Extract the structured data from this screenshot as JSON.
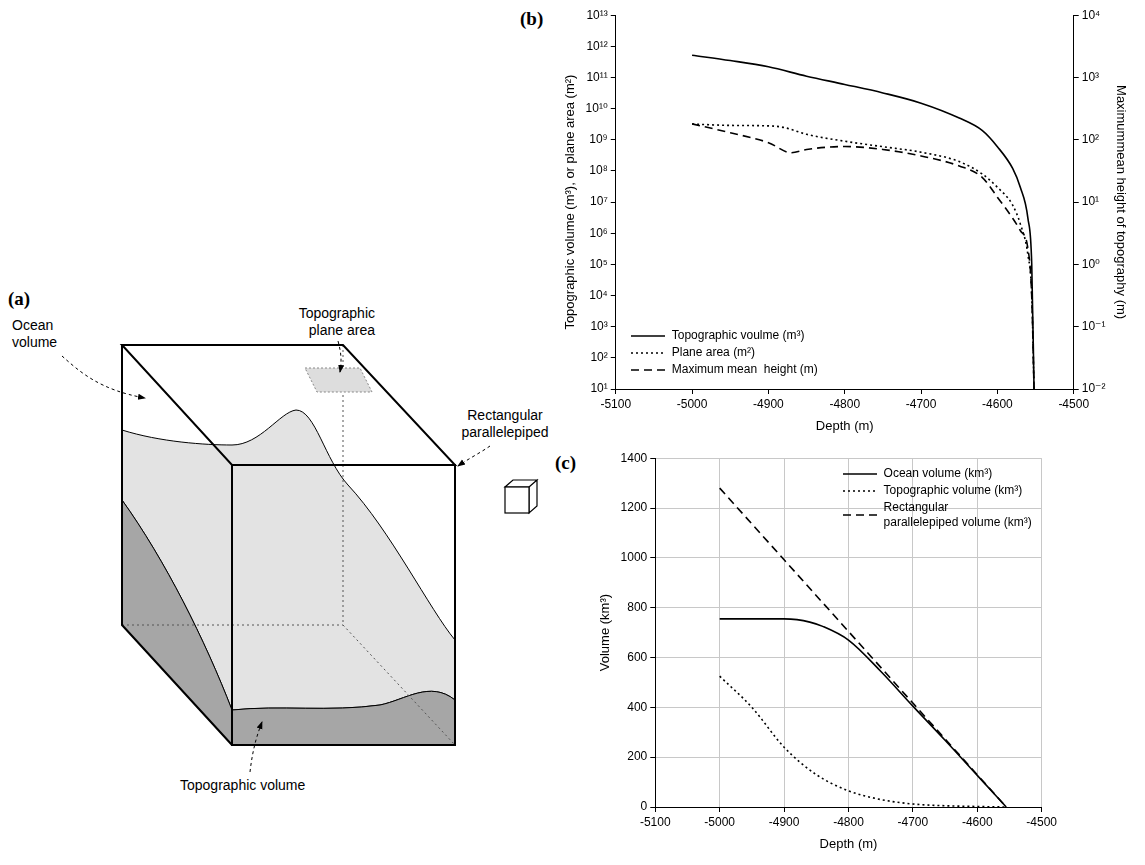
{
  "diagram": {
    "panel": "(a)",
    "ocean_volume": [
      "Ocean",
      "volume"
    ],
    "plane_area": [
      "Topographic",
      "plane area"
    ],
    "parallelepiped": [
      "Rectangular",
      "parallelepiped"
    ],
    "topographic_volume": [
      "Topographic volume"
    ]
  },
  "chart_data": [
    {
      "panel": "(b)",
      "type": "line",
      "xlabel": "Depth (m)",
      "ylabel": "Topographic volume (m³), or plane area (m²)",
      "y2label": "Maximummean height of topography (m)",
      "xlim": [
        -5100,
        -4500
      ],
      "xticks": [
        -5100,
        -5000,
        -4900,
        -4800,
        -4700,
        -4600,
        -4500
      ],
      "ylim": [
        10,
        10000000000000.0
      ],
      "yticks": [
        {
          "value": 10,
          "label": "10¹"
        },
        {
          "value": 100,
          "label": "10²"
        },
        {
          "value": 1000,
          "label": "10³"
        },
        {
          "value": 10000,
          "label": "10⁴"
        },
        {
          "value": 100000,
          "label": "10⁵"
        },
        {
          "value": 1000000.0,
          "label": "10⁶"
        },
        {
          "value": 10000000.0,
          "label": "10⁷"
        },
        {
          "value": 100000000.0,
          "label": "10⁸"
        },
        {
          "value": 1000000000.0,
          "label": "10⁹"
        },
        {
          "value": 10000000000.0,
          "label": "10¹⁰"
        },
        {
          "value": 100000000000.0,
          "label": "10¹¹"
        },
        {
          "value": 1000000000000.0,
          "label": "10¹²"
        },
        {
          "value": 10000000000000.0,
          "label": "10¹³"
        }
      ],
      "y2lim": [
        0.01,
        10000
      ],
      "y2ticks": [
        {
          "value": 0.01,
          "label": "10⁻²"
        },
        {
          "value": 0.1,
          "label": "10⁻¹"
        },
        {
          "value": 1,
          "label": "10⁰"
        },
        {
          "value": 10,
          "label": "10¹"
        },
        {
          "value": 100,
          "label": "10²"
        },
        {
          "value": 1000,
          "label": "10³"
        },
        {
          "value": 10000,
          "label": "10⁴"
        }
      ],
      "log": "y",
      "grid": false,
      "legend": "lower left",
      "series": [
        {
          "name": "Topographic voulme (m³)",
          "color": "#000000",
          "line_style": "solid",
          "x": [
            -5000,
            -4950,
            -4900,
            -4850,
            -4800,
            -4750,
            -4700,
            -4650,
            -4620,
            -4600,
            -4580,
            -4570,
            -4560,
            -4555,
            -4552
          ],
          "values": [
            520000000000.0,
            350000000000.0,
            220000000000.0,
            110000000000.0,
            60000000000.0,
            32000000000.0,
            15000000000.0,
            5000000000.0,
            2000000000.0,
            600000000.0,
            120000000.0,
            30000000.0,
            3000000.0,
            100000,
            10
          ]
        },
        {
          "name": "Plane area (m²)",
          "color": "#000000",
          "line_style": "dotted",
          "x": [
            -5000,
            -4950,
            -4900,
            -4880,
            -4850,
            -4800,
            -4750,
            -4700,
            -4650,
            -4620,
            -4600,
            -4580,
            -4570,
            -4560,
            -4555,
            -4552
          ],
          "values": [
            3200000000.0,
            2900000000.0,
            2800000000.0,
            2500000000.0,
            1500000000.0,
            900000000.0,
            600000000.0,
            400000000.0,
            200000000.0,
            80000000.0,
            30000000.0,
            8000000.0,
            2000000.0,
            200000,
            10000,
            10
          ]
        },
        {
          "name": "Maximum mean  height (m)",
          "color": "#000000",
          "line_style": "dashed",
          "axis": "y2",
          "x": [
            -5000,
            -4950,
            -4900,
            -4870,
            -4850,
            -4800,
            -4750,
            -4700,
            -4650,
            -4620,
            -4600,
            -4580,
            -4570,
            -4560,
            -4555,
            -4552
          ],
          "values": [
            180,
            130,
            90,
            62,
            70,
            78,
            70,
            55,
            38,
            25,
            12,
            5.5,
            3.5,
            1.8,
            0.3,
            0.01
          ]
        }
      ]
    },
    {
      "panel": "(c)",
      "type": "line",
      "xlabel": "Depth (m)",
      "ylabel": "Volume (km³)",
      "xlim": [
        -5100,
        -4500
      ],
      "xticks": [
        -5100,
        -5000,
        -4900,
        -4800,
        -4700,
        -4600,
        -4500
      ],
      "ylim": [
        0,
        1400
      ],
      "yticks": [
        0,
        200,
        400,
        600,
        800,
        1000,
        1200,
        1400
      ],
      "grid": true,
      "legend": "upper right",
      "series": [
        {
          "name": "Ocean volume (km³)",
          "color": "#000000",
          "line_style": "solid",
          "x": [
            -5000,
            -4900,
            -4880,
            -4860,
            -4840,
            -4800,
            -4750,
            -4700,
            -4650,
            -4600,
            -4555
          ],
          "values": [
            755,
            755,
            752,
            742,
            725,
            670,
            545,
            405,
            268,
            127,
            0
          ]
        },
        {
          "name": "Topographic volume (km³)",
          "color": "#000000",
          "line_style": "dotted",
          "x": [
            -5000,
            -4950,
            -4900,
            -4850,
            -4800,
            -4750,
            -4700,
            -4650,
            -4600,
            -4555
          ],
          "values": [
            525,
            400,
            240,
            130,
            65,
            30,
            12,
            5,
            2,
            0
          ]
        },
        {
          "name": "Rectangular parallelepiped volume (km³)",
          "color": "#000000",
          "line_style": "dashed",
          "x": [
            -5000,
            -4555
          ],
          "values": [
            1280,
            0
          ]
        }
      ]
    }
  ]
}
